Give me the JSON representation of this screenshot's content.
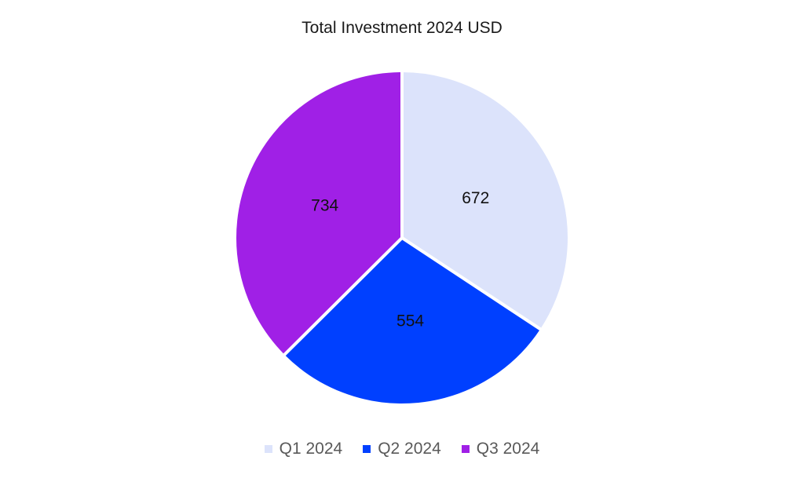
{
  "chart_data": {
    "type": "pie",
    "title": "Total Investment 2024 USD",
    "categories": [
      "Q1 2024",
      "Q2 2024",
      "Q3 2024"
    ],
    "values": [
      672,
      554,
      734
    ],
    "colors": [
      "#dce3fb",
      "#0040ff",
      "#a020e6"
    ],
    "legend_position": "bottom",
    "start_angle": "12 o'clock, clockwise"
  }
}
